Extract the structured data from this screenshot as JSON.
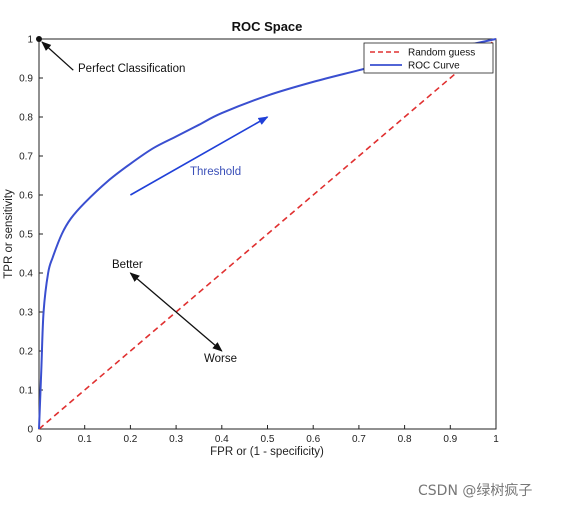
{
  "chart_data": {
    "type": "line",
    "title": "ROC Space",
    "xlabel": "FPR or (1 - specificity)",
    "ylabel": "TPR or sensitivity",
    "xlim": [
      0,
      1
    ],
    "ylim": [
      0,
      1
    ],
    "xticks": [
      "0",
      "0.1",
      "0.2",
      "0.3",
      "0.4",
      "0.5",
      "0.6",
      "0.7",
      "0.8",
      "0.9",
      "1"
    ],
    "yticks": [
      "0",
      "0.1",
      "0.2",
      "0.3",
      "0.4",
      "0.5",
      "0.6",
      "0.7",
      "0.8",
      "0.9",
      "1"
    ],
    "grid": false,
    "legend_position": "top-right",
    "series": [
      {
        "name": "Random guess",
        "style": "dashed",
        "color": "#e03030",
        "x": [
          0,
          1
        ],
        "y": [
          0,
          1
        ]
      },
      {
        "name": "ROC Curve",
        "style": "solid",
        "color": "#3a4fd0",
        "x": [
          0,
          0.005,
          0.01,
          0.02,
          0.03,
          0.05,
          0.07,
          0.1,
          0.15,
          0.2,
          0.25,
          0.3,
          0.35,
          0.4,
          0.5,
          0.6,
          0.7,
          0.8,
          0.9,
          1.0
        ],
        "y": [
          0,
          0.15,
          0.3,
          0.4,
          0.44,
          0.5,
          0.54,
          0.58,
          0.635,
          0.68,
          0.72,
          0.75,
          0.78,
          0.81,
          0.855,
          0.89,
          0.92,
          0.95,
          0.975,
          1.0
        ]
      }
    ],
    "annotations": [
      {
        "text": "Perfect Classification",
        "point": [
          0,
          1
        ]
      },
      {
        "text": "Threshold",
        "arrow_from": [
          0.2,
          0.6
        ],
        "arrow_to": [
          0.5,
          0.8
        ]
      },
      {
        "text": "Better",
        "arrow_from": [
          0.3,
          0.3
        ],
        "arrow_to": [
          0.2,
          0.4
        ]
      },
      {
        "text": "Worse",
        "arrow_from": [
          0.3,
          0.3
        ],
        "arrow_to": [
          0.4,
          0.2
        ]
      }
    ]
  },
  "watermark": "CSDN @绿树疯子"
}
